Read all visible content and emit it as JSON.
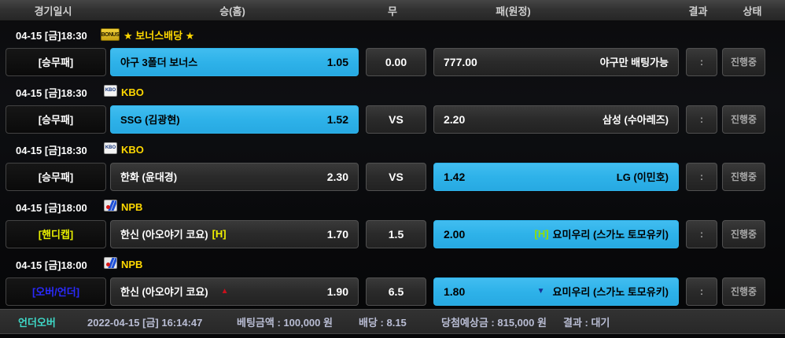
{
  "header": {
    "columns": {
      "datetime": "경기일시",
      "home": "승(홈)",
      "draw": "무",
      "away": "패(원정)",
      "result": "결과",
      "status": "상태"
    }
  },
  "icons": {
    "bonus_label": "BONUS",
    "kbo_label": "KBO"
  },
  "colors": {
    "highlight_cyan": "#2eb2e9",
    "league_yellow": "#ffd800",
    "handicap_label_yellow": "#e8f000",
    "overunder_label_blue": "#2a2aff",
    "footer_accent_teal": "#3fd9c8",
    "up_marker_red": "#c8101c",
    "down_marker_blue": "#173096"
  },
  "groups": [
    {
      "datetime": "04-15 [금]18:30",
      "league": "★ 보너스배당 ★",
      "bet_type": "[승무패]",
      "home": {
        "name": "야구 3폴더 보너스",
        "tag": "",
        "marker": "",
        "odds": "1.05",
        "highlight": true
      },
      "draw": "0.00",
      "away": {
        "odds": "777.00",
        "marker": "",
        "tag": "",
        "name": "야구만 배팅가능",
        "highlight": false
      },
      "result": ":",
      "status": "진행중"
    },
    {
      "datetime": "04-15 [금]18:30",
      "league": "KBO",
      "bet_type": "[승무패]",
      "home": {
        "name": "SSG (김광현)",
        "tag": "",
        "marker": "",
        "odds": "1.52",
        "highlight": true
      },
      "draw": "VS",
      "away": {
        "odds": "2.20",
        "marker": "",
        "tag": "",
        "name": "삼성 (수아레즈)",
        "highlight": false
      },
      "result": ":",
      "status": "진행중"
    },
    {
      "datetime": "04-15 [금]18:30",
      "league": "KBO",
      "bet_type": "[승무패]",
      "home": {
        "name": "한화 (윤대경)",
        "tag": "",
        "marker": "",
        "odds": "2.30",
        "highlight": false
      },
      "draw": "VS",
      "away": {
        "odds": "1.42",
        "marker": "",
        "tag": "",
        "name": "LG (이민호)",
        "highlight": true
      },
      "result": ":",
      "status": "진행중"
    },
    {
      "datetime": "04-15 [금]18:00",
      "league": "NPB",
      "bet_type": "[핸디캡]",
      "home": {
        "name": "한신 (아오야기 코요)",
        "tag": "[H]",
        "marker": "",
        "odds": "1.70",
        "highlight": false
      },
      "draw": "1.5",
      "away": {
        "odds": "2.00",
        "marker": "",
        "tag": "[H]",
        "name": "요미우리 (스가노 토모유키)",
        "highlight": true
      },
      "result": ":",
      "status": "진행중"
    },
    {
      "datetime": "04-15 [금]18:00",
      "league": "NPB",
      "bet_type": "[오버/언더]",
      "home": {
        "name": "한신 (아오야기 코요)",
        "tag": "",
        "marker": "▲",
        "odds": "1.90",
        "highlight": false
      },
      "draw": "6.5",
      "away": {
        "odds": "1.80",
        "marker": "▼",
        "tag": "",
        "name": "요미우리 (스가노 토모유키)",
        "highlight": true
      },
      "result": ":",
      "status": "진행중"
    }
  ],
  "footer": {
    "market": "언더오버",
    "datetime": "2022-04-15 [금] 16:14:47",
    "bet_amount": "베팅금액 : 100,000 원",
    "odds": "배당 : 8.15",
    "expected_win": "당첨예상금 : 815,000 원",
    "result": "결과 : 대기"
  }
}
